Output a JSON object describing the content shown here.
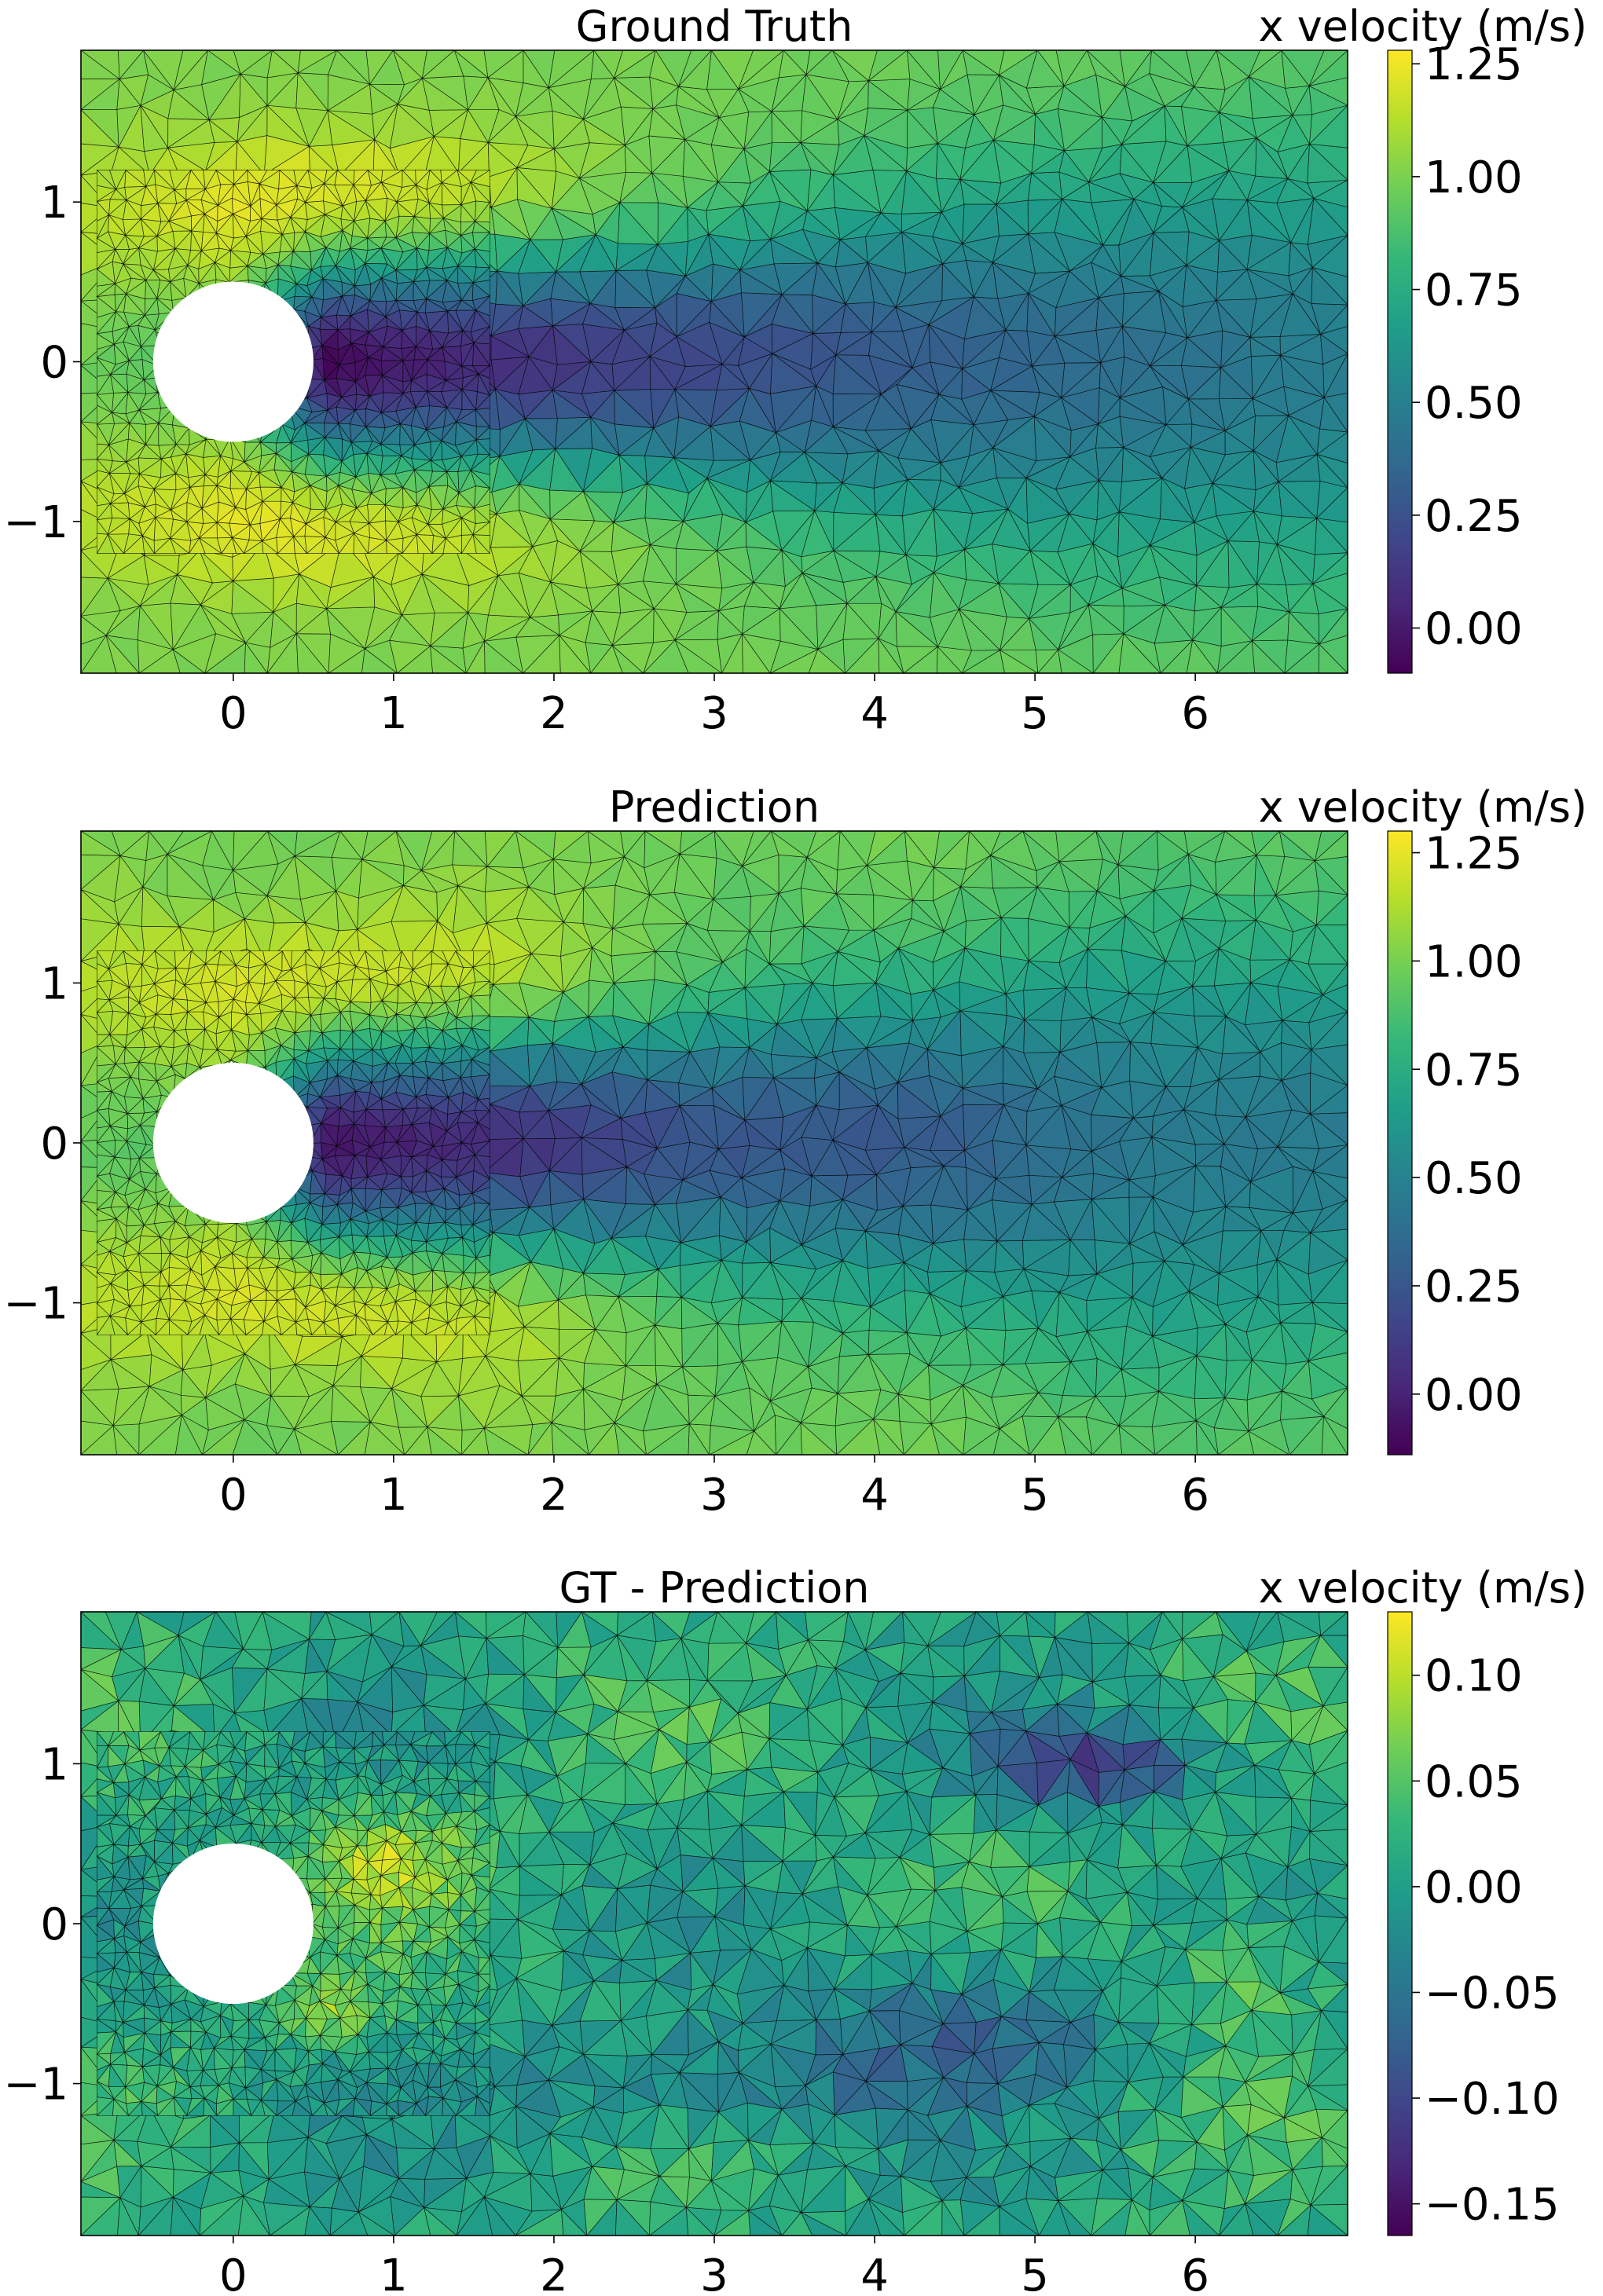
{
  "colormap": "viridis",
  "colors": {
    "viridis_stops": [
      "#440154",
      "#482878",
      "#3e4989",
      "#31688e",
      "#26828e",
      "#1f9e89",
      "#35b779",
      "#6ece58",
      "#b5de2b",
      "#fde725"
    ],
    "mesh_line": "#000000",
    "frame": "#000000",
    "cylinder": "#ffffff"
  },
  "chart_data": [
    {
      "type": "heatmap",
      "subtype": "triangular-mesh field (tripcolor)",
      "title": "Ground Truth",
      "colorbar_label": "x velocity (m/s)",
      "xlim": [
        -0.95,
        6.95
      ],
      "ylim": [
        -1.95,
        1.95
      ],
      "x_ticks": [
        "0",
        "1",
        "2",
        "3",
        "4",
        "5",
        "6"
      ],
      "y_ticks": [
        "1",
        "0",
        "−1"
      ],
      "color_range": [
        -0.1,
        1.28
      ],
      "colorbar_ticks": [
        "1.25",
        "1.00",
        "0.75",
        "0.50",
        "0.25",
        "0.00"
      ],
      "obstacle": {
        "shape": "circle",
        "center": [
          0,
          0
        ],
        "radius": 0.5
      },
      "field_description": "Free stream about 1.0 m/s, accelerated flow up to about 1.25 m/s above and below the cylinder, wake deficit near 0.0 directly behind it, recovering downstream to about 0.3 by x = 6."
    },
    {
      "type": "heatmap",
      "subtype": "triangular-mesh field (tripcolor)",
      "title": "Prediction",
      "colorbar_label": "x velocity (m/s)",
      "xlim": [
        -0.95,
        6.95
      ],
      "ylim": [
        -1.95,
        1.95
      ],
      "x_ticks": [
        "0",
        "1",
        "2",
        "3",
        "4",
        "5",
        "6"
      ],
      "y_ticks": [
        "1",
        "0",
        "−1"
      ],
      "color_range": [
        -0.14,
        1.3
      ],
      "colorbar_ticks": [
        "1.25",
        "1.00",
        "0.75",
        "0.50",
        "0.25",
        "0.00"
      ],
      "obstacle": {
        "shape": "circle",
        "center": [
          0,
          0
        ],
        "radius": 0.5
      },
      "field_description": "Nearly identical to ground truth: peak about 1.25 m/s beside the cylinder, wake minimum near 0.0, gradual recovery downstream."
    },
    {
      "type": "heatmap",
      "subtype": "triangular-mesh field (tripcolor)",
      "title": "GT - Prediction",
      "colorbar_label": "x velocity (m/s)",
      "xlim": [
        -0.95,
        6.95
      ],
      "ylim": [
        -1.95,
        1.95
      ],
      "x_ticks": [
        "0",
        "1",
        "2",
        "3",
        "4",
        "5",
        "6"
      ],
      "y_ticks": [
        "1",
        "0",
        "−1"
      ],
      "color_range": [
        -0.165,
        0.13
      ],
      "colorbar_ticks": [
        "0.10",
        "0.05",
        "0.00",
        "−0.05",
        "−0.10",
        "−0.15"
      ],
      "obstacle": {
        "shape": "circle",
        "center": [
          0,
          0
        ],
        "radius": 0.5
      },
      "field_description": "Residual mostly between -0.05 and 0.05; negative patches near -0.15 around x = 5..6, y = 1 and in the lower wake; positive patches up to about 0.1 just behind the cylinder."
    }
  ]
}
